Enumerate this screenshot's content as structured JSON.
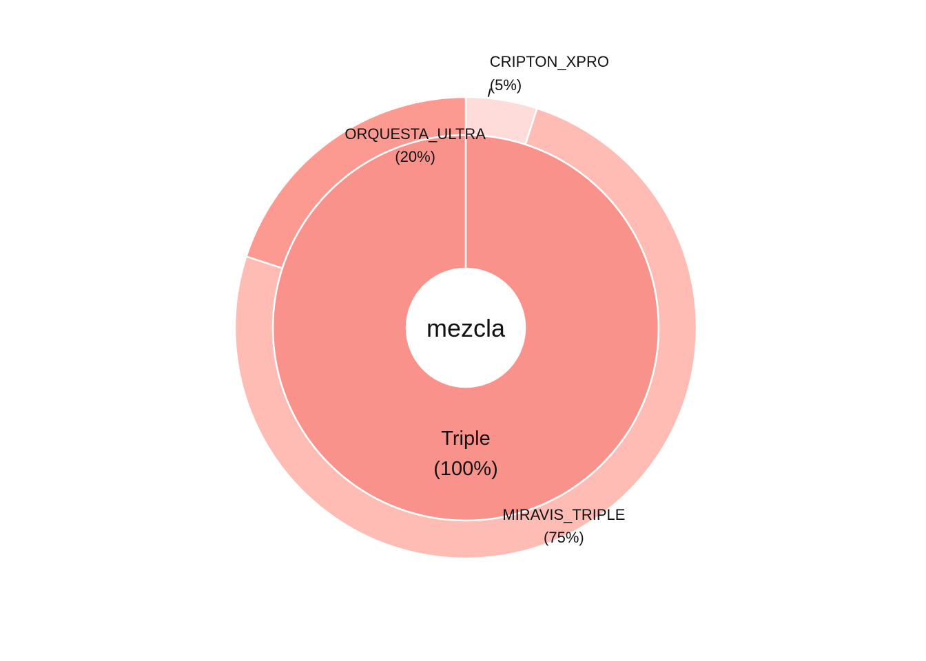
{
  "chart_data": {
    "type": "sunburst",
    "center_label": "mezcla",
    "inner_ring": [
      {
        "label": "Triple",
        "value": 100,
        "pct_label": "(100%)",
        "color": "#F8928B"
      }
    ],
    "outer_ring": [
      {
        "label": "CRIPTON_XPRO",
        "value": 5,
        "pct_label": "(5%)",
        "color": "#FEDCD9"
      },
      {
        "label": "MIRAVIS_TRIPLE",
        "value": 75,
        "pct_label": "(75%)",
        "color": "#FEBCB5"
      },
      {
        "label": "ORQUESTA_ULTRA",
        "value": 20,
        "pct_label": "(20%)",
        "color": "#FC9A91"
      }
    ],
    "start": "top",
    "direction": "clockwise",
    "legend": "none"
  }
}
